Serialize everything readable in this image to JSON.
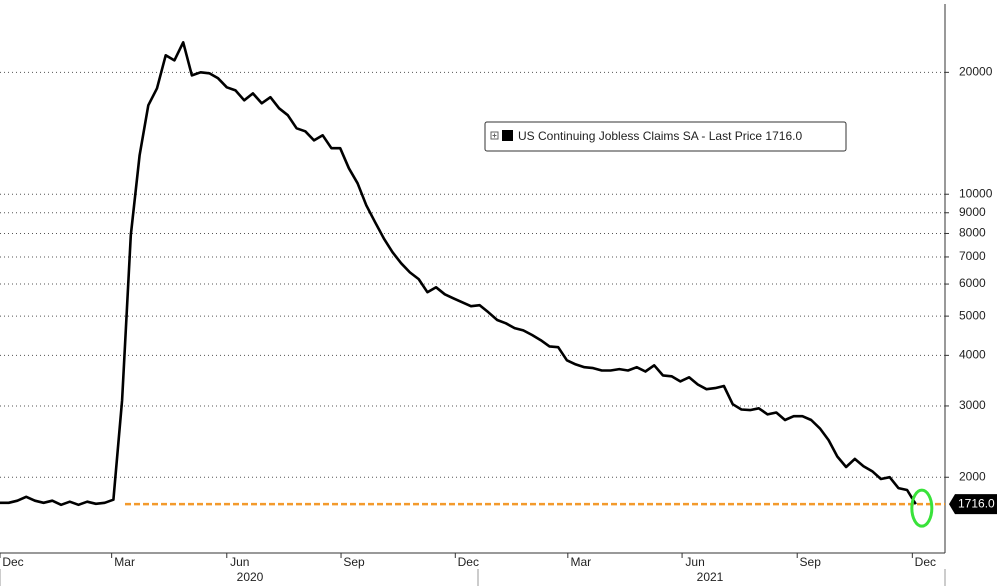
{
  "chart_data": {
    "type": "line",
    "log_scale": true,
    "grid": true,
    "legend_position": "upper center",
    "ylim": [
      1300,
      29500
    ],
    "yticks": [
      2000,
      3000,
      4000,
      5000,
      6000,
      7000,
      8000,
      9000,
      10000,
      20000
    ],
    "xlim": [
      0,
      108
    ],
    "xticks": [
      {
        "value": 0,
        "label": "Dec"
      },
      {
        "value": 12.8,
        "label": "Mar"
      },
      {
        "value": 26.0,
        "label": "Jun"
      },
      {
        "value": 39.1,
        "label": "Sep"
      },
      {
        "value": 52.2,
        "label": "Dec"
      },
      {
        "value": 65.1,
        "label": "Mar"
      },
      {
        "value": 78.2,
        "label": "Jun"
      },
      {
        "value": 91.4,
        "label": "Sep"
      },
      {
        "value": 104.6,
        "label": "Dec"
      }
    ],
    "years": [
      "2020",
      "2021"
    ],
    "last_price": {
      "value": 1716,
      "label": "1716.0",
      "color": "#f39a2c"
    },
    "series": [
      {
        "name": "US Continuing Jobless Claims SA - Last Price 1716.0",
        "color": "#000000",
        "values": [
          1730,
          1730,
          1750,
          1790,
          1750,
          1730,
          1750,
          1710,
          1740,
          1710,
          1740,
          1720,
          1730,
          1760,
          3100,
          7920,
          12480,
          16580,
          18260,
          22030,
          21410,
          23720,
          19660,
          20000,
          19890,
          19330,
          18370,
          18050,
          17060,
          17740,
          16770,
          17360,
          16300,
          15670,
          14550,
          14300,
          13580,
          13980,
          12990,
          12990,
          11590,
          10640,
          9390,
          8530,
          7780,
          7190,
          6750,
          6410,
          6170,
          5730,
          5890,
          5660,
          5530,
          5410,
          5290,
          5320,
          5110,
          4890,
          4800,
          4670,
          4610,
          4490,
          4360,
          4210,
          4190,
          3890,
          3800,
          3740,
          3720,
          3670,
          3670,
          3700,
          3670,
          3740,
          3650,
          3780,
          3570,
          3550,
          3450,
          3530,
          3390,
          3300,
          3320,
          3360,
          3030,
          2940,
          2930,
          2960,
          2860,
          2890,
          2770,
          2830,
          2830,
          2770,
          2640,
          2470,
          2250,
          2120,
          2220,
          2130,
          2070,
          1980,
          2000,
          1880,
          1860,
          1716
        ]
      }
    ]
  }
}
